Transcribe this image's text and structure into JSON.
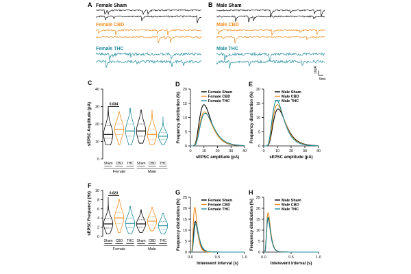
{
  "colors": {
    "sham": "#000000",
    "cbd": "#f28c1e",
    "thc": "#1a8a9a"
  },
  "panels": {
    "A": {
      "letter": "A",
      "traces": [
        {
          "label": "Female Sham"
        },
        {
          "label": "Female CBD"
        },
        {
          "label": "Female THC"
        }
      ]
    },
    "B": {
      "letter": "B",
      "traces": [
        {
          "label": "Male Sham"
        },
        {
          "label": "Male CBD"
        },
        {
          "label": "Male THC"
        }
      ]
    },
    "scalebar": {
      "amplitude": "10pA",
      "time": "5ms"
    },
    "C": {
      "letter": "C"
    },
    "F": {
      "letter": "F"
    }
  },
  "chart_data": [
    {
      "panel": "C",
      "type": "violin",
      "ylabel": "sEPSC Amplitude (pA)",
      "ylim": [
        0,
        40
      ],
      "yticks": [
        "0",
        "10",
        "20",
        "30",
        "40"
      ],
      "categories": [
        "Sham",
        "CBD",
        "THC",
        "Sham",
        "CBD",
        "THC"
      ],
      "groups": [
        "Female",
        "Male"
      ],
      "medians": [
        14,
        17,
        16,
        16,
        14,
        13
      ],
      "q1": [
        12,
        14,
        13,
        13,
        11,
        11
      ],
      "q3": [
        19,
        20,
        20,
        20,
        17,
        15
      ],
      "min": [
        8,
        8,
        8,
        9,
        8,
        8
      ],
      "max": [
        30,
        27,
        29,
        28,
        28,
        24
      ],
      "annotation": {
        "text": "0.034",
        "from": 0,
        "to": 1,
        "y": 30
      }
    },
    {
      "panel": "D",
      "type": "line",
      "xlabel": "sEPSC amplitude (pA)",
      "ylabel": "Frequency distribution (%)",
      "xlim": [
        0,
        40
      ],
      "ylim": [
        0,
        20
      ],
      "xticks": [
        "0",
        "10",
        "20",
        "30",
        "40"
      ],
      "yticks": [
        "0",
        "5",
        "10",
        "15",
        "20"
      ],
      "legend": [
        "Female Sham",
        "Female CBD",
        "Female THC"
      ],
      "series": [
        {
          "name": "Female Sham",
          "peak_x": 10,
          "peak_y": 14.5
        },
        {
          "name": "Female CBD",
          "peak_x": 10.5,
          "peak_y": 12
        },
        {
          "name": "Female THC",
          "peak_x": 11,
          "peak_y": 11.5
        }
      ]
    },
    {
      "panel": "E",
      "type": "line",
      "xlabel": "sEPSC amplitude (pA)",
      "ylabel": "Frequency distribution (%)",
      "xlim": [
        0,
        40
      ],
      "ylim": [
        0,
        20
      ],
      "xticks": [
        "0",
        "10",
        "20",
        "30",
        "40"
      ],
      "yticks": [
        "0",
        "5",
        "10",
        "15",
        "20"
      ],
      "legend": [
        "Male Sham",
        "Male CBD",
        "Male THC"
      ],
      "series": [
        {
          "name": "Male Sham",
          "peak_x": 10.5,
          "peak_y": 13
        },
        {
          "name": "Male CBD",
          "peak_x": 10,
          "peak_y": 14.5
        },
        {
          "name": "Male THC",
          "peak_x": 9.5,
          "peak_y": 16
        }
      ]
    },
    {
      "panel": "F",
      "type": "violin",
      "ylabel": "sEPSC Frequency (Hz)",
      "ylim": [
        0,
        10
      ],
      "yticks": [
        "0",
        "2",
        "4",
        "6",
        "8",
        "10"
      ],
      "categories": [
        "Sham",
        "CBD",
        "THC",
        "Sham",
        "CBD",
        "THC"
      ],
      "groups": [
        "Female",
        "Male"
      ],
      "medians": [
        2.7,
        4.0,
        2.8,
        2.7,
        3.3,
        2.3
      ],
      "q1": [
        1.8,
        2.8,
        1.9,
        2.0,
        2.5,
        1.5
      ],
      "q3": [
        3.8,
        5.2,
        4.0,
        3.6,
        4.3,
        3.2
      ],
      "min": [
        0.5,
        0.8,
        0.6,
        0.8,
        1.2,
        0.5
      ],
      "max": [
        8.5,
        8.0,
        6.5,
        5.8,
        6.3,
        5.0
      ],
      "annotation": {
        "text": "0.023",
        "from": 0,
        "to": 1,
        "y": 8.9
      }
    },
    {
      "panel": "G",
      "type": "line",
      "xlabel": "Interevent interval (s)",
      "ylabel": "Frequency distribution (%)",
      "xlim": [
        0,
        1
      ],
      "ylim": [
        0,
        25
      ],
      "xticks": [
        "0.0",
        "0.5",
        "1.0"
      ],
      "yticks": [
        "0",
        "5",
        "10",
        "15",
        "20",
        "25"
      ],
      "legend": [
        "Female Sham",
        "Female CBD",
        "Female THC"
      ],
      "series": [
        {
          "name": "Female Sham",
          "peak_x": 0.09,
          "peak_y": 14
        },
        {
          "name": "Female CBD",
          "peak_x": 0.08,
          "peak_y": 20.5
        },
        {
          "name": "Female THC",
          "peak_x": 0.1,
          "peak_y": 13
        }
      ]
    },
    {
      "panel": "H",
      "type": "line",
      "xlabel": "Interevent interval (s)",
      "ylabel": "Frequency distribution (%)",
      "xlim": [
        0,
        1
      ],
      "ylim": [
        0,
        25
      ],
      "xticks": [
        "0.0",
        "0.5",
        "1.0"
      ],
      "yticks": [
        "0",
        "5",
        "10",
        "15",
        "20",
        "25"
      ],
      "legend": [
        "Male Sham",
        "Male CBD",
        "Male THC"
      ],
      "series": [
        {
          "name": "Male Sham",
          "peak_x": 0.08,
          "peak_y": 15.5
        },
        {
          "name": "Male CBD",
          "peak_x": 0.08,
          "peak_y": 18
        },
        {
          "name": "Male THC",
          "peak_x": 0.08,
          "peak_y": 16
        }
      ]
    }
  ]
}
